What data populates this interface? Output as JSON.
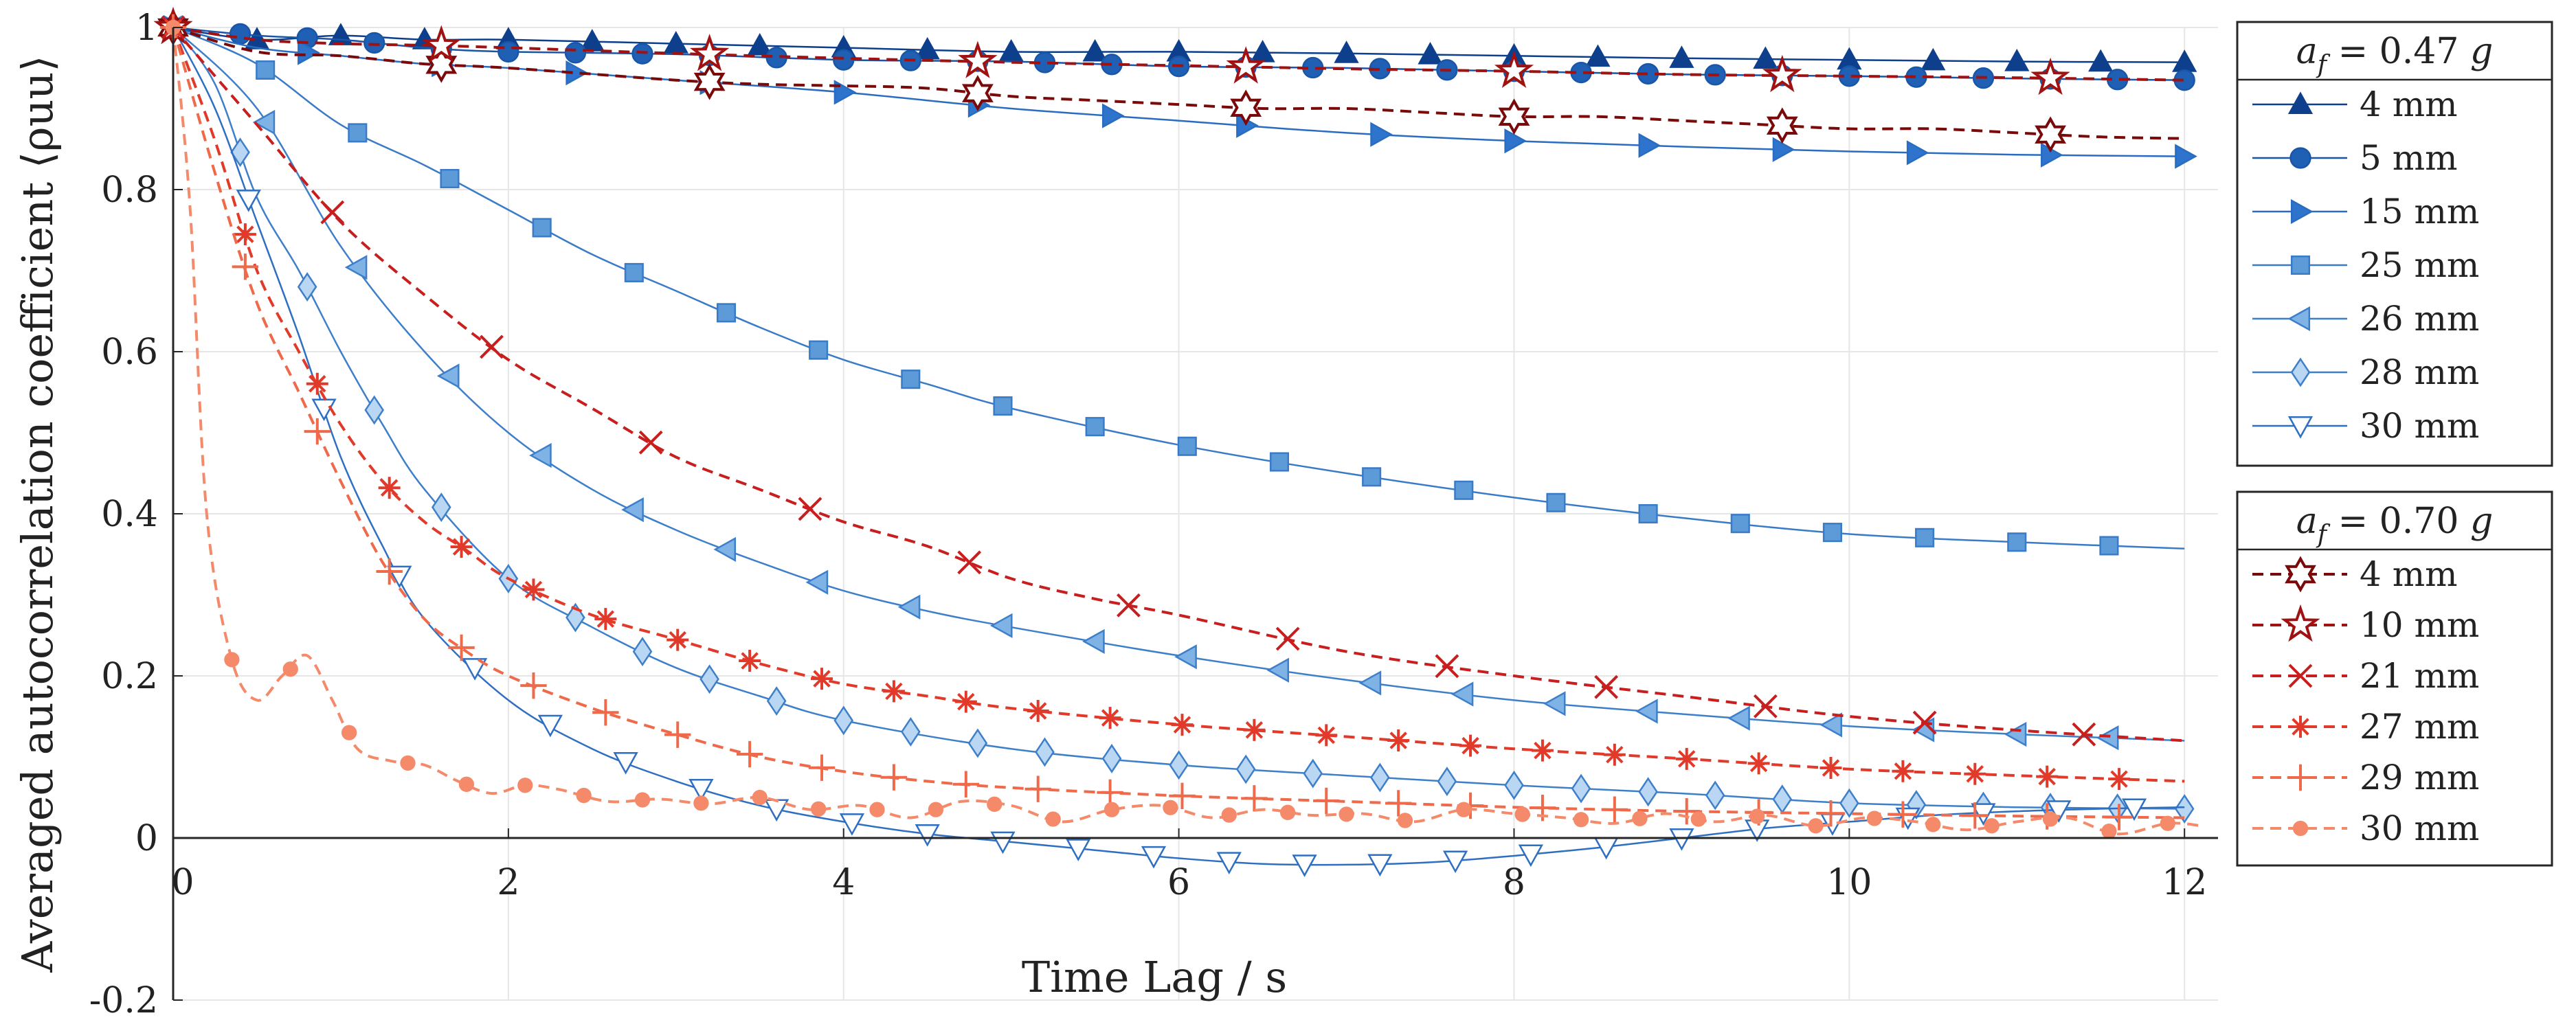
{
  "chart_data": {
    "type": "line",
    "xlabel": "Time Lag / s",
    "ylabel": "Averaged autocorrelation coefficient ⟨ρuu⟩",
    "xlim": [
      0,
      12.2
    ],
    "ylim": [
      -0.2,
      1
    ],
    "x_ticks": [
      "0",
      "2",
      "4",
      "6",
      "8",
      "10",
      "12"
    ],
    "y_ticks": [
      "-0.2",
      "0",
      "0.2",
      "0.4",
      "0.6",
      "0.8",
      "1"
    ],
    "grid": true,
    "legend_position": "right, outside plot",
    "legend_groups": [
      {
        "title": "a_f = 0.47 g",
        "title_parts": [
          "a",
          "f",
          " = 0.47 ",
          "g"
        ]
      },
      {
        "title": "a_f = 0.70 g",
        "title_parts": [
          "a",
          "f",
          " = 0.70 ",
          "g"
        ]
      }
    ],
    "series": [
      {
        "name": "4 mm",
        "group": 0,
        "color": "#0d3f8c",
        "dash": "solid",
        "marker": "triangle-up",
        "marker_every": 0.5,
        "fill": "#0d3f8c",
        "x": [
          0,
          0.5,
          1,
          1.5,
          2,
          3,
          4,
          5,
          6,
          7,
          8,
          9,
          10,
          11,
          12
        ],
        "y": [
          1,
          0.985,
          0.99,
          0.985,
          0.985,
          0.98,
          0.975,
          0.97,
          0.97,
          0.968,
          0.965,
          0.962,
          0.96,
          0.958,
          0.957
        ]
      },
      {
        "name": "5 mm",
        "group": 0,
        "color": "#1a56a8",
        "dash": "solid",
        "marker": "circle",
        "marker_every": 0.4,
        "fill": "#1f5fb4",
        "x": [
          0,
          0.5,
          1,
          1.5,
          2,
          3,
          4,
          5,
          6,
          7,
          8,
          9,
          10,
          11,
          12
        ],
        "y": [
          1,
          0.99,
          0.985,
          0.975,
          0.97,
          0.967,
          0.96,
          0.958,
          0.952,
          0.95,
          0.946,
          0.942,
          0.94,
          0.937,
          0.935
        ]
      },
      {
        "name": "15 mm",
        "group": 0,
        "color": "#2a6cc0",
        "dash": "solid",
        "marker": "triangle-right",
        "marker_every": 0.8,
        "fill": "#2e73cc",
        "x": [
          0,
          0.5,
          1,
          1.5,
          2,
          3,
          4,
          5,
          6,
          7,
          8,
          9,
          10,
          11,
          12
        ],
        "y": [
          1,
          0.975,
          0.965,
          0.955,
          0.95,
          0.935,
          0.92,
          0.9,
          0.885,
          0.87,
          0.86,
          0.853,
          0.847,
          0.843,
          0.841
        ]
      },
      {
        "name": "25 mm",
        "group": 0,
        "color": "#3a7bc8",
        "dash": "solid",
        "marker": "square",
        "marker_every": 0.55,
        "fill": "#5c9ad8",
        "x": [
          0,
          0.5,
          1,
          1.5,
          2,
          2.5,
          3,
          3.5,
          4,
          4.5,
          5,
          6,
          7,
          8,
          9,
          10,
          11,
          12
        ],
        "y": [
          1,
          0.955,
          0.88,
          0.83,
          0.775,
          0.72,
          0.675,
          0.63,
          0.59,
          0.56,
          0.53,
          0.485,
          0.45,
          0.42,
          0.395,
          0.375,
          0.365,
          0.357
        ]
      },
      {
        "name": "26 mm",
        "group": 0,
        "color": "#3e7fca",
        "dash": "solid",
        "marker": "triangle-left",
        "marker_every": 0.55,
        "fill": "#7fb3e6",
        "x": [
          0,
          0.5,
          1,
          1.5,
          2,
          2.5,
          3,
          3.5,
          4,
          4.5,
          5,
          6,
          7,
          8,
          9,
          10,
          11,
          12
        ],
        "y": [
          1,
          0.9,
          0.73,
          0.6,
          0.5,
          0.43,
          0.38,
          0.34,
          0.305,
          0.28,
          0.26,
          0.225,
          0.195,
          0.17,
          0.153,
          0.138,
          0.128,
          0.12
        ]
      },
      {
        "name": "28 mm",
        "group": 0,
        "color": "#3e7fca",
        "dash": "solid",
        "marker": "diamond",
        "marker_every": 0.4,
        "fill": "#b9d6f2",
        "x": [
          0,
          0.25,
          0.5,
          0.75,
          1,
          1.25,
          1.5,
          2,
          2.5,
          3,
          3.5,
          4,
          5,
          6,
          7,
          8,
          9,
          10,
          11,
          12
        ],
        "y": [
          1,
          0.93,
          0.79,
          0.7,
          0.6,
          0.51,
          0.43,
          0.32,
          0.26,
          0.21,
          0.175,
          0.145,
          0.11,
          0.09,
          0.077,
          0.065,
          0.055,
          0.043,
          0.038,
          0.036
        ]
      },
      {
        "name": "30 mm",
        "group": 0,
        "color": "#2f6fc2",
        "dash": "solid",
        "marker": "triangle-down",
        "marker_every": 0.45,
        "fill": "#ffffff",
        "x": [
          0,
          0.25,
          0.5,
          0.75,
          1,
          1.25,
          1.5,
          2,
          2.5,
          3,
          3.5,
          4,
          4.5,
          5,
          5.5,
          6,
          6.5,
          7,
          7.5,
          8,
          8.5,
          9,
          9.5,
          10,
          10.5,
          11,
          11.5,
          12
        ],
        "y": [
          1,
          0.9,
          0.76,
          0.62,
          0.47,
          0.36,
          0.27,
          0.17,
          0.11,
          0.07,
          0.04,
          0.02,
          0.005,
          -0.005,
          -0.015,
          -0.025,
          -0.032,
          -0.033,
          -0.03,
          -0.022,
          -0.012,
          0.0,
          0.012,
          0.02,
          0.028,
          0.033,
          0.036,
          0.038
        ]
      },
      {
        "name": "4 mm",
        "group": 1,
        "color": "#7a0a0a",
        "dash": "dash",
        "marker": "hexagram",
        "marker_every": 1.6,
        "fill": "#ffffff",
        "x": [
          0,
          0.5,
          1,
          1.5,
          2,
          3,
          3.5,
          4,
          4.5,
          5,
          5.5,
          6,
          6.5,
          7,
          7.5,
          8,
          8.5,
          9,
          9.5,
          10,
          10.5,
          11,
          11.5,
          12
        ],
        "y": [
          1,
          0.97,
          0.965,
          0.955,
          0.95,
          0.935,
          0.93,
          0.928,
          0.925,
          0.915,
          0.91,
          0.905,
          0.9,
          0.9,
          0.895,
          0.89,
          0.89,
          0.885,
          0.88,
          0.875,
          0.875,
          0.87,
          0.865,
          0.863
        ]
      },
      {
        "name": "10 mm",
        "group": 1,
        "color": "#a01212",
        "dash": "dash",
        "marker": "pentagram",
        "marker_every": 1.6,
        "fill": "#ffffff",
        "x": [
          0,
          0.5,
          1,
          1.5,
          2,
          3,
          4,
          5,
          6,
          7,
          8,
          9,
          10,
          11,
          12
        ],
        "y": [
          1,
          0.985,
          0.98,
          0.978,
          0.975,
          0.968,
          0.962,
          0.957,
          0.953,
          0.949,
          0.946,
          0.942,
          0.94,
          0.938,
          0.935
        ]
      },
      {
        "name": "21 mm",
        "group": 1,
        "color": "#c81e1e",
        "dash": "dash",
        "marker": "x",
        "marker_every": 0.95,
        "fill": "#c81e1e",
        "x": [
          0,
          0.5,
          1,
          1.5,
          2,
          2.5,
          3,
          3.5,
          4,
          4.5,
          5,
          5.5,
          6,
          7,
          8,
          9,
          10,
          11,
          12
        ],
        "y": [
          1,
          0.88,
          0.76,
          0.67,
          0.59,
          0.53,
          0.47,
          0.43,
          0.39,
          0.36,
          0.32,
          0.295,
          0.275,
          0.23,
          0.2,
          0.175,
          0.15,
          0.133,
          0.12
        ]
      },
      {
        "name": "27 mm",
        "group": 1,
        "color": "#e23a2a",
        "dash": "dash",
        "marker": "asterisk",
        "marker_every": 0.43,
        "fill": "#e23a2a",
        "x": [
          0,
          0.25,
          0.5,
          0.75,
          1,
          1.25,
          1.5,
          1.75,
          2,
          2.5,
          3,
          3.5,
          4,
          4.5,
          5,
          6,
          7,
          8,
          9,
          10,
          11,
          12
        ],
        "y": [
          1,
          0.86,
          0.7,
          0.6,
          0.51,
          0.44,
          0.39,
          0.355,
          0.32,
          0.275,
          0.245,
          0.215,
          0.19,
          0.175,
          0.16,
          0.14,
          0.125,
          0.11,
          0.098,
          0.085,
          0.077,
          0.07
        ]
      },
      {
        "name": "29 mm",
        "group": 1,
        "color": "#ef6a4a",
        "dash": "dash",
        "marker": "plus",
        "marker_every": 0.43,
        "fill": "#ef6a4a",
        "x": [
          0,
          0.25,
          0.5,
          0.75,
          1,
          1.25,
          1.5,
          1.75,
          2,
          2.5,
          3,
          3.5,
          4,
          4.5,
          5,
          6,
          7,
          8,
          9,
          10,
          11,
          12
        ],
        "y": [
          1,
          0.82,
          0.66,
          0.55,
          0.44,
          0.34,
          0.27,
          0.23,
          0.2,
          0.16,
          0.128,
          0.1,
          0.082,
          0.07,
          0.062,
          0.052,
          0.045,
          0.038,
          0.033,
          0.03,
          0.027,
          0.025
        ]
      },
      {
        "name": "30 mm",
        "group": 1,
        "color": "#f58a6a",
        "dash": "dash",
        "marker": "dot",
        "marker_every": 0.35,
        "fill": "#f58a6a",
        "x": [
          0,
          0.1,
          0.2,
          0.35,
          0.5,
          0.65,
          0.8,
          0.95,
          1.1,
          1.3,
          1.5,
          1.7,
          1.9,
          2.1,
          2.3,
          2.6,
          2.9,
          3.2,
          3.5,
          3.8,
          4.1,
          4.4,
          4.7,
          5,
          5.3,
          5.6,
          5.9,
          6.2,
          6.5,
          6.8,
          7.1,
          7.4,
          7.7,
          8,
          8.3,
          8.6,
          8.9,
          9.2,
          9.5,
          9.8,
          10.1,
          10.4,
          10.7,
          11,
          11.3,
          11.6,
          11.9,
          12.1
        ],
        "y": [
          1,
          0.78,
          0.4,
          0.22,
          0.17,
          0.2,
          0.225,
          0.17,
          0.11,
          0.095,
          0.09,
          0.07,
          0.055,
          0.065,
          0.06,
          0.045,
          0.048,
          0.042,
          0.05,
          0.035,
          0.04,
          0.025,
          0.045,
          0.04,
          0.02,
          0.035,
          0.04,
          0.025,
          0.035,
          0.028,
          0.03,
          0.02,
          0.035,
          0.03,
          0.025,
          0.018,
          0.03,
          0.02,
          0.028,
          0.015,
          0.025,
          0.02,
          0.01,
          0.02,
          0.025,
          0.005,
          0.018,
          0.015
        ]
      }
    ]
  }
}
